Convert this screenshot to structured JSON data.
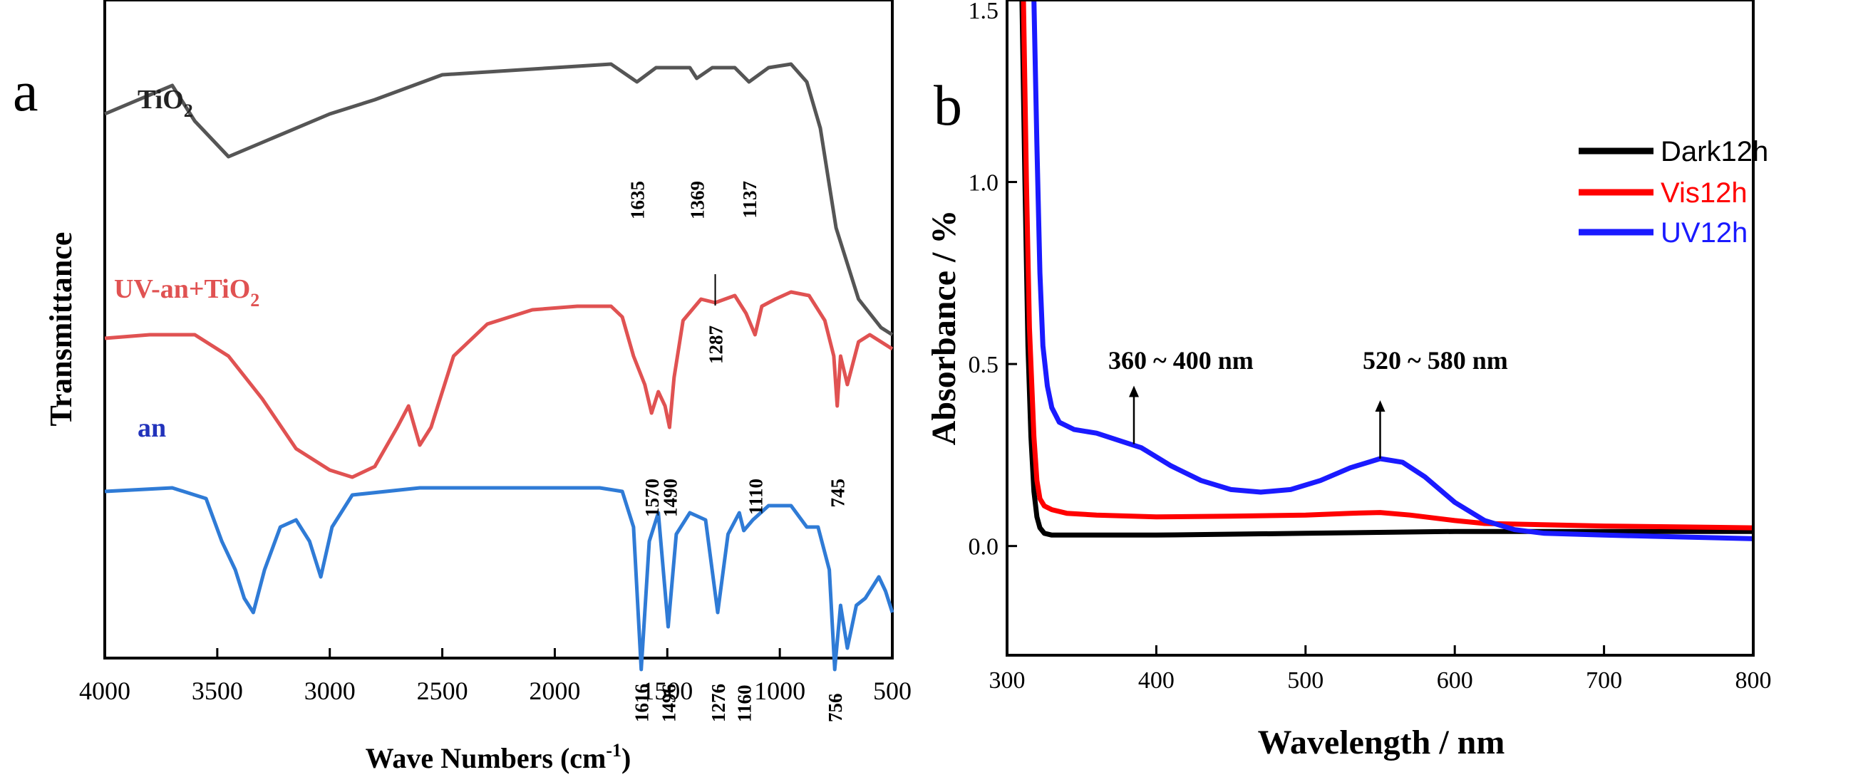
{
  "chart_data": [
    {
      "id": "a",
      "type": "line",
      "panel_letter": "a",
      "xlabel": "Wave Numbers (cm",
      "xlabel_sup": "-1",
      "xlabel_end": ")",
      "ylabel": "Transmittance",
      "xlim": [
        4000,
        500
      ],
      "x_ticks": [
        4000,
        3500,
        3000,
        2500,
        2000,
        1500,
        1000,
        500
      ],
      "series": [
        {
          "name": "TiO2",
          "label_main": "TiO",
          "label_sub": "2",
          "color": "#555555",
          "points": [
            [
              4000,
              0.84
            ],
            [
              3700,
              0.88
            ],
            [
              3600,
              0.83
            ],
            [
              3450,
              0.78
            ],
            [
              3300,
              0.8
            ],
            [
              3000,
              0.84
            ],
            [
              2800,
              0.86
            ],
            [
              2500,
              0.895
            ],
            [
              2000,
              0.905
            ],
            [
              1750,
              0.91
            ],
            [
              1635,
              0.885
            ],
            [
              1550,
              0.905
            ],
            [
              1400,
              0.905
            ],
            [
              1369,
              0.89
            ],
            [
              1300,
              0.905
            ],
            [
              1200,
              0.905
            ],
            [
              1137,
              0.885
            ],
            [
              1050,
              0.905
            ],
            [
              950,
              0.91
            ],
            [
              880,
              0.885
            ],
            [
              820,
              0.82
            ],
            [
              750,
              0.68
            ],
            [
              650,
              0.58
            ],
            [
              550,
              0.54
            ],
            [
              500,
              0.53
            ]
          ],
          "peaks": [
            {
              "label": "1635",
              "x": 1635
            },
            {
              "label": "1369",
              "x": 1369
            },
            {
              "label": "1137",
              "x": 1137
            }
          ]
        },
        {
          "name": "UV-an+TiO2",
          "label_main": "UV-an+TiO",
          "label_sub": "2",
          "color": "#e05252",
          "points": [
            [
              4000,
              0.525
            ],
            [
              3800,
              0.53
            ],
            [
              3600,
              0.53
            ],
            [
              3450,
              0.5
            ],
            [
              3300,
              0.44
            ],
            [
              3150,
              0.37
            ],
            [
              3000,
              0.34
            ],
            [
              2900,
              0.33
            ],
            [
              2800,
              0.345
            ],
            [
              2700,
              0.4
            ],
            [
              2650,
              0.43
            ],
            [
              2600,
              0.375
            ],
            [
              2550,
              0.4
            ],
            [
              2450,
              0.5
            ],
            [
              2300,
              0.545
            ],
            [
              2100,
              0.565
            ],
            [
              1900,
              0.57
            ],
            [
              1750,
              0.57
            ],
            [
              1700,
              0.555
            ],
            [
              1650,
              0.5
            ],
            [
              1600,
              0.46
            ],
            [
              1570,
              0.42
            ],
            [
              1540,
              0.45
            ],
            [
              1510,
              0.43
            ],
            [
              1490,
              0.4
            ],
            [
              1470,
              0.47
            ],
            [
              1430,
              0.55
            ],
            [
              1350,
              0.58
            ],
            [
              1287,
              0.575
            ],
            [
              1200,
              0.585
            ],
            [
              1150,
              0.56
            ],
            [
              1110,
              0.53
            ],
            [
              1080,
              0.57
            ],
            [
              1020,
              0.58
            ],
            [
              950,
              0.59
            ],
            [
              870,
              0.585
            ],
            [
              800,
              0.55
            ],
            [
              760,
              0.5
            ],
            [
              745,
              0.43
            ],
            [
              730,
              0.5
            ],
            [
              700,
              0.46
            ],
            [
              650,
              0.52
            ],
            [
              600,
              0.53
            ],
            [
              500,
              0.51
            ]
          ],
          "peaks": [
            {
              "label": "1570",
              "x": 1570
            },
            {
              "label": "1490",
              "x": 1490
            },
            {
              "label": "1287",
              "x": 1287
            },
            {
              "label": "1110",
              "x": 1110
            },
            {
              "label": "745",
              "x": 745
            }
          ]
        },
        {
          "name": "an",
          "label_main": "an",
          "label_sub": "",
          "color": "#2f7bd6",
          "points": [
            [
              4000,
              0.31
            ],
            [
              3700,
              0.315
            ],
            [
              3550,
              0.3
            ],
            [
              3480,
              0.24
            ],
            [
              3420,
              0.2
            ],
            [
              3380,
              0.16
            ],
            [
              3340,
              0.14
            ],
            [
              3290,
              0.2
            ],
            [
              3220,
              0.26
            ],
            [
              3150,
              0.27
            ],
            [
              3090,
              0.24
            ],
            [
              3040,
              0.19
            ],
            [
              2990,
              0.26
            ],
            [
              2900,
              0.305
            ],
            [
              2600,
              0.315
            ],
            [
              2000,
              0.315
            ],
            [
              1800,
              0.315
            ],
            [
              1700,
              0.31
            ],
            [
              1650,
              0.26
            ],
            [
              1616,
              0.06
            ],
            [
              1580,
              0.24
            ],
            [
              1540,
              0.28
            ],
            [
              1496,
              0.12
            ],
            [
              1460,
              0.25
            ],
            [
              1400,
              0.28
            ],
            [
              1330,
              0.27
            ],
            [
              1276,
              0.14
            ],
            [
              1230,
              0.25
            ],
            [
              1180,
              0.28
            ],
            [
              1160,
              0.255
            ],
            [
              1120,
              0.27
            ],
            [
              1050,
              0.29
            ],
            [
              950,
              0.29
            ],
            [
              880,
              0.26
            ],
            [
              830,
              0.26
            ],
            [
              780,
              0.2
            ],
            [
              756,
              0.06
            ],
            [
              730,
              0.15
            ],
            [
              700,
              0.09
            ],
            [
              660,
              0.15
            ],
            [
              620,
              0.16
            ],
            [
              560,
              0.19
            ],
            [
              530,
              0.17
            ],
            [
              500,
              0.14
            ]
          ],
          "peaks": [
            {
              "label": "1616",
              "x": 1616
            },
            {
              "label": "1496",
              "x": 1496
            },
            {
              "label": "1276",
              "x": 1276
            },
            {
              "label": "1160",
              "x": 1160
            },
            {
              "label": "756",
              "x": 756
            }
          ]
        }
      ]
    },
    {
      "id": "b",
      "type": "line",
      "panel_letter": "b",
      "xlabel": "Wavelength / nm",
      "ylabel": "Absorbance / %",
      "xlim": [
        300,
        800
      ],
      "ylim": [
        -0.3,
        1.5
      ],
      "x_ticks": [
        300,
        400,
        500,
        600,
        700,
        800
      ],
      "y_ticks": [
        "0.0",
        "0.5",
        "1.0",
        "1.5"
      ],
      "legend": [
        "Dark12h",
        "Vis12h",
        "UV12h"
      ],
      "legend_position": "top-right",
      "annotations": [
        {
          "text": "360 ~ 400 nm",
          "x": 385,
          "y": 0.28
        },
        {
          "text": "520 ~ 580 nm",
          "x": 550,
          "y": 0.24
        }
      ],
      "series": [
        {
          "name": "Dark12h",
          "color": "#000000",
          "points": [
            [
              310,
              1.5
            ],
            [
              312,
              1.0
            ],
            [
              314,
              0.55
            ],
            [
              316,
              0.3
            ],
            [
              318,
              0.15
            ],
            [
              320,
              0.08
            ],
            [
              322,
              0.05
            ],
            [
              325,
              0.035
            ],
            [
              330,
              0.03
            ],
            [
              400,
              0.03
            ],
            [
              500,
              0.035
            ],
            [
              600,
              0.04
            ],
            [
              700,
              0.04
            ],
            [
              800,
              0.04
            ]
          ]
        },
        {
          "name": "Vis12h",
          "color": "#ff0000",
          "points": [
            [
              311,
              1.5
            ],
            [
              313,
              1.0
            ],
            [
              315,
              0.6
            ],
            [
              318,
              0.3
            ],
            [
              320,
              0.18
            ],
            [
              322,
              0.13
            ],
            [
              325,
              0.11
            ],
            [
              330,
              0.1
            ],
            [
              340,
              0.09
            ],
            [
              360,
              0.085
            ],
            [
              400,
              0.08
            ],
            [
              450,
              0.082
            ],
            [
              500,
              0.085
            ],
            [
              530,
              0.09
            ],
            [
              550,
              0.092
            ],
            [
              570,
              0.085
            ],
            [
              600,
              0.07
            ],
            [
              620,
              0.062
            ],
            [
              700,
              0.055
            ],
            [
              800,
              0.05
            ]
          ]
        },
        {
          "name": "UV12h",
          "color": "#1a1aff",
          "points": [
            [
              318,
              1.5
            ],
            [
              320,
              1.1
            ],
            [
              322,
              0.75
            ],
            [
              324,
              0.55
            ],
            [
              327,
              0.44
            ],
            [
              330,
              0.38
            ],
            [
              335,
              0.34
            ],
            [
              345,
              0.32
            ],
            [
              360,
              0.31
            ],
            [
              375,
              0.29
            ],
            [
              390,
              0.27
            ],
            [
              410,
              0.22
            ],
            [
              430,
              0.18
            ],
            [
              450,
              0.155
            ],
            [
              470,
              0.148
            ],
            [
              490,
              0.155
            ],
            [
              510,
              0.18
            ],
            [
              530,
              0.215
            ],
            [
              550,
              0.24
            ],
            [
              565,
              0.23
            ],
            [
              580,
              0.19
            ],
            [
              600,
              0.12
            ],
            [
              620,
              0.07
            ],
            [
              640,
              0.045
            ],
            [
              660,
              0.035
            ],
            [
              700,
              0.03
            ],
            [
              750,
              0.025
            ],
            [
              800,
              0.02
            ]
          ]
        }
      ]
    }
  ]
}
